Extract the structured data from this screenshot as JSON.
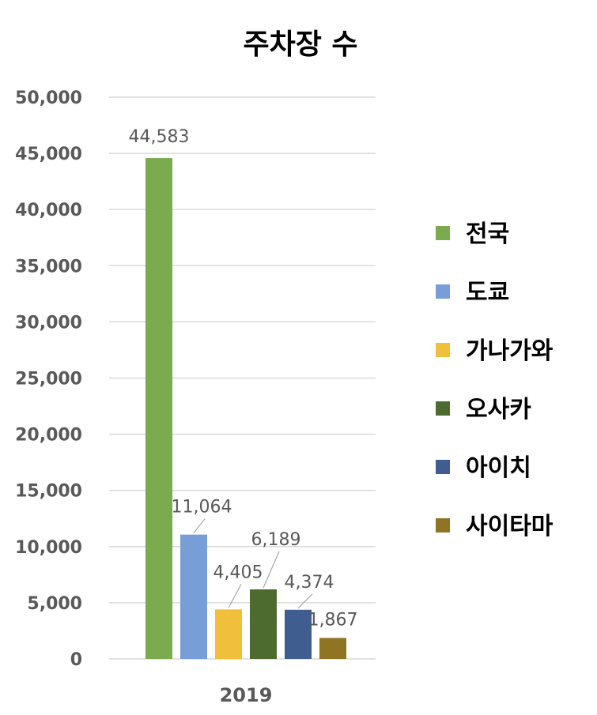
{
  "chart_data": {
    "type": "bar",
    "title": "주차장 수",
    "categories": [
      "2019"
    ],
    "series": [
      {
        "name": "전국",
        "values": [
          44583
        ],
        "label": "44,583",
        "color": "#7aab4f"
      },
      {
        "name": "도쿄",
        "values": [
          11064
        ],
        "label": "11,064",
        "color": "#779ed6"
      },
      {
        "name": "가나가와",
        "values": [
          4405
        ],
        "label": "4,405",
        "color": "#f0bf3c"
      },
      {
        "name": "오사카",
        "values": [
          6189
        ],
        "label": "6,189",
        "color": "#4d6b2f"
      },
      {
        "name": "아이치",
        "values": [
          4374
        ],
        "label": "4,374",
        "color": "#3f5d8f"
      },
      {
        "name": "사이타마",
        "values": [
          1867
        ],
        "label": "1,867",
        "color": "#8f7424"
      }
    ],
    "ylim": [
      0,
      50000
    ],
    "yticks": [
      0,
      5000,
      10000,
      15000,
      20000,
      25000,
      30000,
      35000,
      40000,
      45000,
      50000
    ],
    "ytick_labels": [
      "0",
      "5,000",
      "10,000",
      "15,000",
      "20,000",
      "25,000",
      "30,000",
      "35,000",
      "40,000",
      "45,000",
      "50,000"
    ],
    "grid": true,
    "legend_position": "right"
  }
}
